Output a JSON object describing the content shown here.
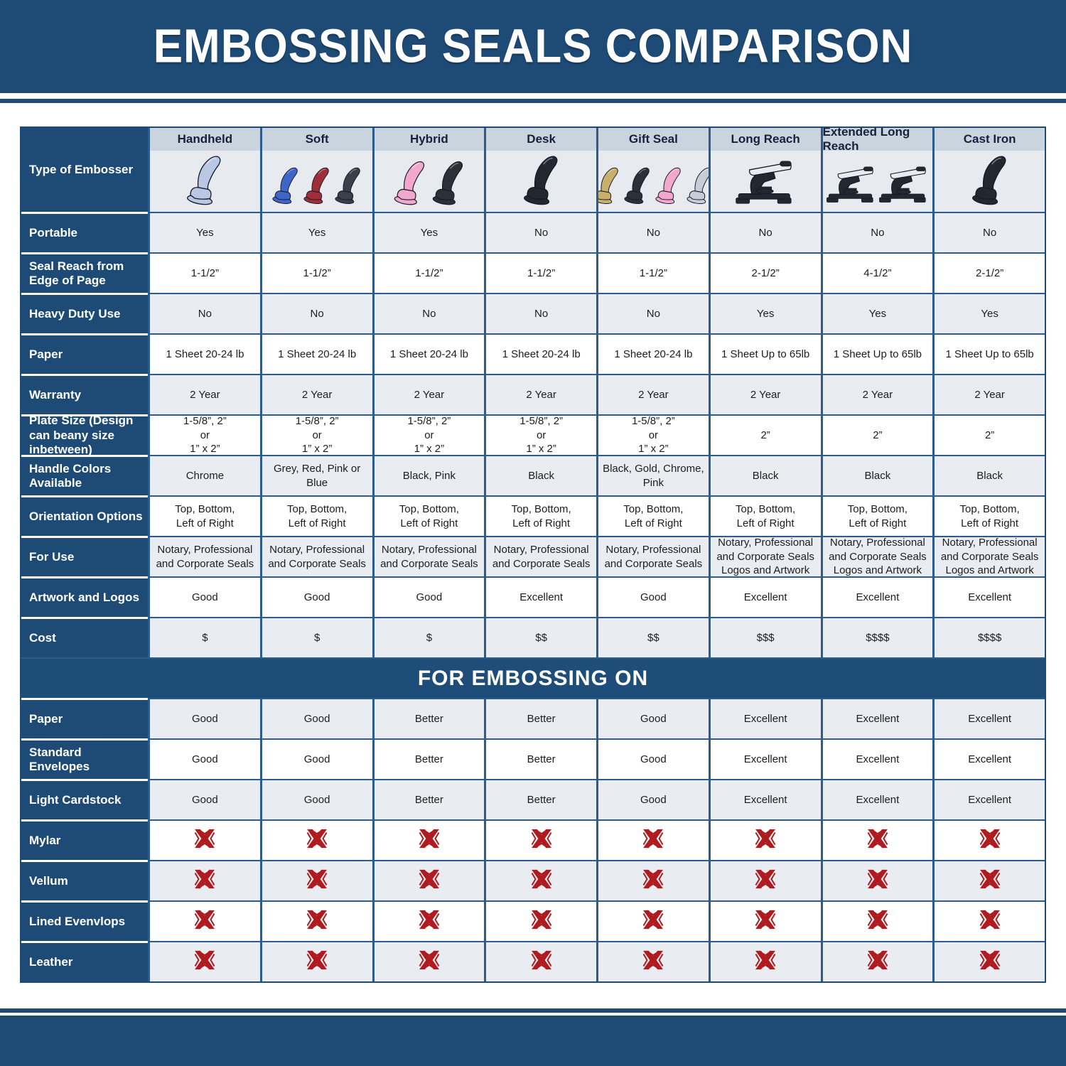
{
  "title": "EMBOSSING SEALS COMPARISON",
  "section_title": "FOR EMBOSSING ON",
  "type_of_embosser_label": "Type of Embosser",
  "colors": {
    "navy": "#1e4b76",
    "grid_blue": "#2c5c8e",
    "header_cell": "#cad4df",
    "image_cell": "#e7ebf0",
    "row_shade": "#e9edf2",
    "x_red": "#b01b1f"
  },
  "columns": [
    {
      "label": "Handheld",
      "icon": "hand-embosser-icon",
      "style": "hand",
      "handle_colors": [
        "#b9c6e4"
      ]
    },
    {
      "label": "Soft",
      "icon": "hand-embosser-icon",
      "style": "hand",
      "handle_colors": [
        "#3e66c9",
        "#9e2f38",
        "#3a3f4a"
      ]
    },
    {
      "label": "Hybrid",
      "icon": "hand-embosser-icon",
      "style": "hand",
      "handle_colors": [
        "#f2a8cc",
        "#2c3038"
      ]
    },
    {
      "label": "Desk",
      "icon": "hand-embosser-icon",
      "style": "hand",
      "handle_colors": [
        "#23272f"
      ]
    },
    {
      "label": "Gift Seal",
      "icon": "hand-embosser-icon",
      "style": "hand",
      "handle_colors": [
        "#c9b06a",
        "#2c3038",
        "#f2a8cc",
        "#c7cdd8"
      ]
    },
    {
      "label": "Long Reach",
      "icon": "desk-embosser-icon",
      "style": "desk",
      "handle_colors": [
        "#23272f"
      ]
    },
    {
      "label": "Extended Long Reach",
      "icon": "desk-embosser-icon",
      "style": "desk",
      "handle_colors": [
        "#23272f",
        "#23272f"
      ]
    },
    {
      "label": "Cast Iron",
      "icon": "hand-embosser-icon",
      "style": "hand",
      "handle_colors": [
        "#23272f"
      ]
    }
  ],
  "spec_rows": [
    {
      "label": "Portable",
      "shade": true,
      "values": [
        "Yes",
        "Yes",
        "Yes",
        "No",
        "No",
        "No",
        "No",
        "No"
      ]
    },
    {
      "label": "Seal Reach from Edge of Page",
      "shade": false,
      "values": [
        "1-1/2”",
        "1-1/2”",
        "1-1/2”",
        "1-1/2”",
        "1-1/2”",
        "2-1/2”",
        "4-1/2”",
        "2-1/2”"
      ]
    },
    {
      "label": "Heavy Duty Use",
      "shade": true,
      "values": [
        "No",
        "No",
        "No",
        "No",
        "No",
        "Yes",
        "Yes",
        "Yes"
      ]
    },
    {
      "label": "Paper",
      "shade": false,
      "values": [
        "1 Sheet 20-24 lb",
        "1 Sheet 20-24 lb",
        "1 Sheet 20-24 lb",
        "1 Sheet 20-24 lb",
        "1 Sheet 20-24 lb",
        "1 Sheet Up to 65lb",
        "1 Sheet Up to 65lb",
        "1 Sheet Up to 65lb"
      ]
    },
    {
      "label": "Warranty",
      "shade": true,
      "values": [
        "2 Year",
        "2 Year",
        "2 Year",
        "2 Year",
        "2 Year",
        "2 Year",
        "2 Year",
        "2 Year"
      ]
    },
    {
      "label": "Plate Size (Design can beany size inbetween)",
      "shade": false,
      "values": [
        "1-5/8”, 2”\nor\n1” x 2”",
        "1-5/8”, 2”\nor\n1” x 2”",
        "1-5/8”, 2”\nor\n1” x 2”",
        "1-5/8”, 2”\nor\n1” x 2”",
        "1-5/8”, 2”\nor\n1” x 2”",
        "2”",
        "2”",
        "2”"
      ]
    },
    {
      "label": "Handle Colors Available",
      "shade": true,
      "values": [
        "Chrome",
        "Grey, Red, Pink or Blue",
        "Black, Pink",
        "Black",
        "Black, Gold, Chrome, Pink",
        "Black",
        "Black",
        "Black"
      ]
    },
    {
      "label": "Orientation Options",
      "shade": false,
      "values": [
        "Top, Bottom,\nLeft of Right",
        "Top, Bottom,\nLeft of Right",
        "Top, Bottom,\nLeft of Right",
        "Top, Bottom,\nLeft of Right",
        "Top, Bottom,\nLeft of Right",
        "Top, Bottom,\nLeft of Right",
        "Top, Bottom,\nLeft of Right",
        "Top, Bottom,\nLeft of Right"
      ]
    },
    {
      "label": "For Use",
      "shade": true,
      "values": [
        "Notary, Professional\nand Corporate Seals",
        "Notary, Professional\nand Corporate Seals",
        "Notary, Professional\nand Corporate Seals",
        "Notary, Professional\nand Corporate Seals",
        "Notary, Professional\nand Corporate Seals",
        "Notary, Professional\nand Corporate Seals\nLogos and Artwork",
        "Notary, Professional\nand Corporate Seals\nLogos and Artwork",
        "Notary, Professional\nand Corporate Seals\nLogos and Artwork"
      ]
    },
    {
      "label": "Artwork and Logos",
      "shade": false,
      "values": [
        "Good",
        "Good",
        "Good",
        "Excellent",
        "Good",
        "Excellent",
        "Excellent",
        "Excellent"
      ]
    },
    {
      "label": "Cost",
      "shade": true,
      "values": [
        "$",
        "$",
        "$",
        "$$",
        "$$",
        "$$$",
        "$$$$",
        "$$$$"
      ]
    }
  ],
  "embossing_rows": [
    {
      "label": "Paper",
      "shade": true,
      "values": [
        "Good",
        "Good",
        "Better",
        "Better",
        "Good",
        "Excellent",
        "Excellent",
        "Excellent"
      ]
    },
    {
      "label": "Standard Envelopes",
      "shade": false,
      "values": [
        "Good",
        "Good",
        "Better",
        "Better",
        "Good",
        "Excellent",
        "Excellent",
        "Excellent"
      ]
    },
    {
      "label": "Light Cardstock",
      "shade": true,
      "values": [
        "Good",
        "Good",
        "Better",
        "Better",
        "Good",
        "Excellent",
        "Excellent",
        "Excellent"
      ]
    },
    {
      "label": "Mylar",
      "shade": false,
      "x_row": true,
      "values": [
        "X",
        "X",
        "X",
        "X",
        "X",
        "X",
        "X",
        "X"
      ]
    },
    {
      "label": "Vellum",
      "shade": true,
      "x_row": true,
      "values": [
        "X",
        "X",
        "X",
        "X",
        "X",
        "X",
        "X",
        "X"
      ]
    },
    {
      "label": "Lined Evenvlops",
      "shade": false,
      "x_row": true,
      "values": [
        "X",
        "X",
        "X",
        "X",
        "X",
        "X",
        "X",
        "X"
      ]
    },
    {
      "label": "Leather",
      "shade": true,
      "x_row": true,
      "values": [
        "X",
        "X",
        "X",
        "X",
        "X",
        "X",
        "X",
        "X"
      ]
    }
  ]
}
